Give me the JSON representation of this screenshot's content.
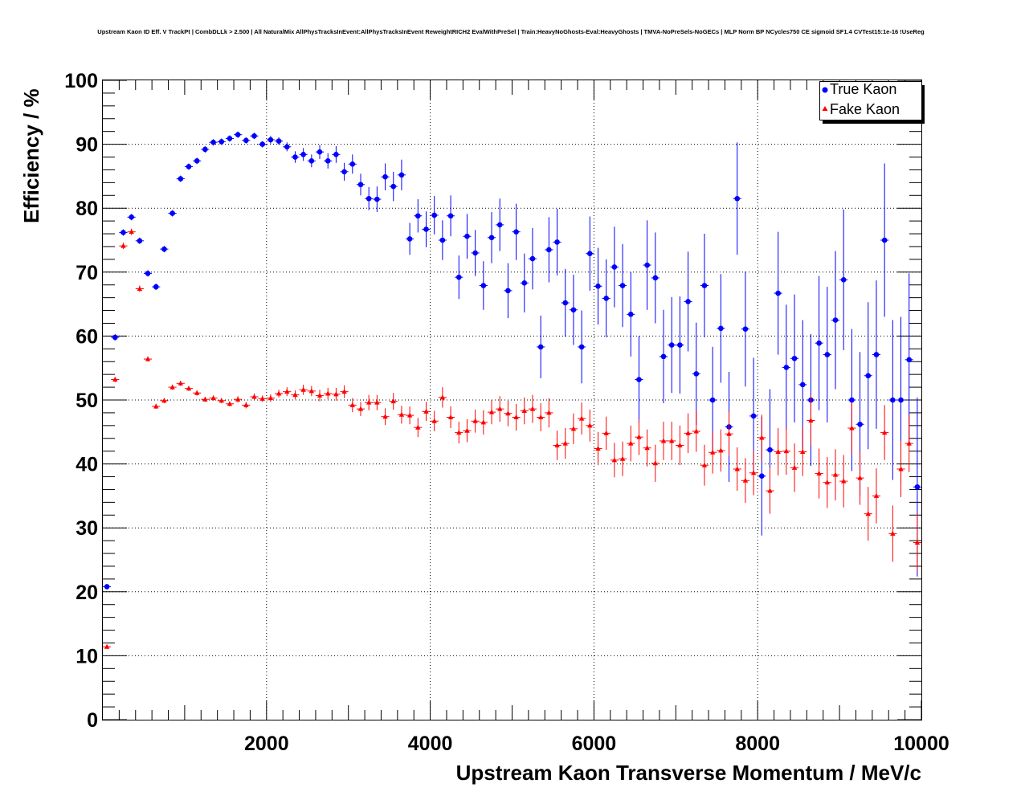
{
  "chart_data": {
    "type": "scatter",
    "title": "Upstream Kaon ID Eff. V TrackPt | CombDLLk > 2.500 | All NaturalMix AllPhysTracksInEvent:AllPhysTracksInEvent ReweightRICH2 EvalWithPreSel | Train:HeavyNoGhosts-Eval:HeavyGhosts | TMVA-NoPreSels-NoGECs | MLP Norm BP NCycles750 CE sigmoid SF1.4 CVTest15:1e-16 !UseReg",
    "xlabel": "Upstream Kaon Transverse Momentum / MeV/c",
    "ylabel": "Efficiency / %",
    "xlim": [
      0,
      10000
    ],
    "ylim": [
      0,
      100
    ],
    "x_ticks": [
      "2000",
      "4000",
      "6000",
      "8000",
      "10000"
    ],
    "y_ticks": [
      "0",
      "10",
      "20",
      "30",
      "40",
      "50",
      "60",
      "70",
      "80",
      "90",
      "100"
    ],
    "grid": true,
    "legend_position": "top-right",
    "series": [
      {
        "name": "True Kaon",
        "color": "#0000ff",
        "marker": "circle",
        "x": [
          50,
          150,
          250,
          350,
          450,
          550,
          650,
          750,
          850,
          950,
          1050,
          1150,
          1250,
          1350,
          1450,
          1550,
          1650,
          1750,
          1850,
          1950,
          2050,
          2150,
          2250,
          2350,
          2450,
          2550,
          2650,
          2750,
          2850,
          2950,
          3050,
          3150,
          3250,
          3350,
          3450,
          3550,
          3650,
          3750,
          3850,
          3950,
          4050,
          4150,
          4250,
          4350,
          4450,
          4550,
          4650,
          4750,
          4850,
          4950,
          5050,
          5150,
          5250,
          5350,
          5450,
          5550,
          5650,
          5750,
          5850,
          5950,
          6050,
          6150,
          6250,
          6350,
          6450,
          6550,
          6650,
          6750,
          6850,
          6950,
          7050,
          7150,
          7250,
          7350,
          7450,
          7550,
          7650,
          7750,
          7850,
          7950,
          8050,
          8150,
          8250,
          8350,
          8450,
          8550,
          8650,
          8750,
          8850,
          8950,
          9050,
          9150,
          9250,
          9350,
          9450,
          9550,
          9650,
          9750,
          9850,
          9950
        ],
        "y": [
          20.8,
          59.8,
          76.2,
          78.6,
          74.9,
          69.8,
          67.7,
          73.6,
          79.2,
          84.6,
          86.5,
          87.4,
          89.2,
          90.3,
          90.4,
          90.9,
          91.5,
          90.6,
          91.3,
          90.0,
          90.7,
          90.5,
          89.6,
          88.0,
          88.4,
          87.4,
          88.8,
          87.4,
          88.4,
          85.7,
          86.9,
          83.7,
          81.5,
          81.4,
          84.9,
          83.4,
          85.2,
          75.2,
          78.8,
          76.7,
          78.9,
          75.0,
          78.8,
          69.2,
          75.6,
          73.0,
          67.9,
          75.4,
          77.4,
          67.1,
          76.3,
          68.3,
          72.1,
          58.3,
          73.5,
          74.7,
          65.2,
          64.1,
          58.3,
          72.9,
          67.8,
          65.9,
          70.8,
          67.9,
          63.4,
          53.2,
          71.1,
          69.1,
          56.8,
          58.6,
          58.6,
          65.4,
          54.1,
          67.9,
          50.0,
          61.2,
          45.8,
          81.5,
          61.1,
          47.5,
          38.1,
          42.2,
          66.7,
          55.1,
          56.5,
          52.4,
          50.0,
          58.9,
          57.1,
          62.5,
          68.8,
          50.0,
          46.2,
          53.8,
          57.1,
          75.0,
          50.0,
          50.0,
          56.3,
          36.4
        ],
        "err": [
          0.3,
          0.5,
          0.5,
          0.5,
          0.5,
          0.5,
          0.5,
          0.5,
          0.5,
          0.5,
          0.5,
          0.5,
          0.5,
          0.5,
          0.5,
          0.5,
          0.5,
          0.5,
          0.5,
          0.5,
          0.6,
          0.6,
          0.7,
          0.9,
          1.0,
          1.0,
          1.1,
          1.2,
          1.3,
          1.4,
          1.5,
          1.7,
          1.8,
          2.0,
          2.1,
          2.3,
          2.4,
          2.5,
          2.6,
          2.8,
          3.0,
          3.1,
          3.2,
          3.4,
          3.5,
          3.6,
          3.8,
          4.0,
          4.1,
          4.3,
          4.4,
          4.6,
          4.8,
          4.9,
          5.1,
          5.2,
          5.3,
          5.5,
          5.7,
          5.8,
          6.0,
          6.1,
          6.3,
          6.5,
          6.6,
          6.8,
          7.0,
          7.1,
          7.3,
          7.5,
          7.6,
          7.8,
          8.0,
          8.1,
          8.3,
          8.5,
          8.6,
          8.8,
          9.0,
          9.1,
          9.3,
          9.5,
          9.6,
          9.8,
          10.0,
          10.1,
          10.3,
          10.5,
          10.6,
          10.8,
          11.0,
          11.1,
          11.3,
          11.5,
          11.6,
          12.0,
          12.5,
          13.0,
          13.5,
          14.0
        ]
      },
      {
        "name": "Fake Kaon",
        "color": "#ff0000",
        "marker": "triangle",
        "x": [
          50,
          150,
          250,
          350,
          450,
          550,
          650,
          750,
          850,
          950,
          1050,
          1150,
          1250,
          1350,
          1450,
          1550,
          1650,
          1750,
          1850,
          1950,
          2050,
          2150,
          2250,
          2350,
          2450,
          2550,
          2650,
          2750,
          2850,
          2950,
          3050,
          3150,
          3250,
          3350,
          3450,
          3550,
          3650,
          3750,
          3850,
          3950,
          4050,
          4150,
          4250,
          4350,
          4450,
          4550,
          4650,
          4750,
          4850,
          4950,
          5050,
          5150,
          5250,
          5350,
          5450,
          5550,
          5650,
          5750,
          5850,
          5950,
          6050,
          6150,
          6250,
          6350,
          6450,
          6550,
          6650,
          6750,
          6850,
          6950,
          7050,
          7150,
          7250,
          7350,
          7450,
          7550,
          7650,
          7750,
          7850,
          7950,
          8050,
          8150,
          8250,
          8350,
          8450,
          8550,
          8650,
          8750,
          8850,
          8950,
          9050,
          9150,
          9250,
          9350,
          9450,
          9550,
          9650,
          9750,
          9850,
          9950
        ],
        "y": [
          11.4,
          53.2,
          74.1,
          76.3,
          67.4,
          56.4,
          49.0,
          49.9,
          52.0,
          52.6,
          51.8,
          51.1,
          50.1,
          50.3,
          49.9,
          49.4,
          50.1,
          49.2,
          50.5,
          50.2,
          50.3,
          51.0,
          51.3,
          50.8,
          51.6,
          51.4,
          50.7,
          51.0,
          50.9,
          51.3,
          49.2,
          48.6,
          49.6,
          49.6,
          47.4,
          49.8,
          47.7,
          47.6,
          45.7,
          48.2,
          46.7,
          50.4,
          47.3,
          44.9,
          45.2,
          46.7,
          46.5,
          48.1,
          48.6,
          47.9,
          47.3,
          48.3,
          48.6,
          47.3,
          48.0,
          42.9,
          43.2,
          45.5,
          47.1,
          46.0,
          42.4,
          44.8,
          40.6,
          40.8,
          43.2,
          44.2,
          42.5,
          40.1,
          43.6,
          43.6,
          42.9,
          44.8,
          45.1,
          39.8,
          41.8,
          42.1,
          44.7,
          39.2,
          37.4,
          38.6,
          44.1,
          35.8,
          41.9,
          42.0,
          39.4,
          41.9,
          46.8,
          38.5,
          37.1,
          38.3,
          37.3,
          45.6,
          37.8,
          32.2,
          35.0,
          44.9,
          29.1,
          39.2,
          43.2,
          27.7
        ],
        "err": [
          0.3,
          0.4,
          0.5,
          0.5,
          0.5,
          0.4,
          0.4,
          0.4,
          0.4,
          0.4,
          0.4,
          0.4,
          0.4,
          0.4,
          0.4,
          0.4,
          0.5,
          0.5,
          0.5,
          0.5,
          0.6,
          0.6,
          0.7,
          0.7,
          0.8,
          0.8,
          0.9,
          0.9,
          1.0,
          1.0,
          1.1,
          1.1,
          1.2,
          1.2,
          1.3,
          1.3,
          1.4,
          1.4,
          1.5,
          1.5,
          1.6,
          1.6,
          1.7,
          1.7,
          1.8,
          1.8,
          1.9,
          1.9,
          2.0,
          2.0,
          2.1,
          2.1,
          2.2,
          2.2,
          2.3,
          2.3,
          2.4,
          2.4,
          2.5,
          2.5,
          2.6,
          2.6,
          2.7,
          2.7,
          2.8,
          2.8,
          2.9,
          2.9,
          3.0,
          3.0,
          3.1,
          3.1,
          3.2,
          3.2,
          3.3,
          3.3,
          3.4,
          3.4,
          3.5,
          3.5,
          3.6,
          3.6,
          3.7,
          3.7,
          3.8,
          3.8,
          3.9,
          3.9,
          4.0,
          4.0,
          4.1,
          4.1,
          4.2,
          4.2,
          4.3,
          4.3,
          4.4,
          4.4,
          4.5,
          4.5
        ]
      }
    ]
  }
}
